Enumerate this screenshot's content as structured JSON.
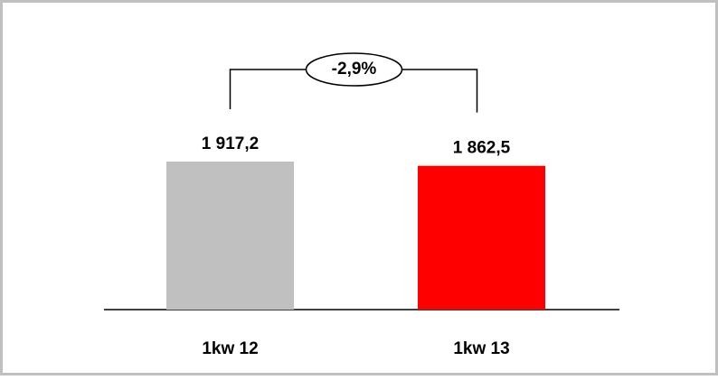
{
  "chart_data": {
    "type": "bar",
    "categories": [
      "1kw 12",
      "1kw 13"
    ],
    "values": [
      1917.2,
      1862.5
    ],
    "value_labels": [
      "1 917,2",
      "1 862,5"
    ],
    "colors": [
      "#c0c0c0",
      "#ff0000"
    ],
    "annotation": "-2,9%"
  }
}
